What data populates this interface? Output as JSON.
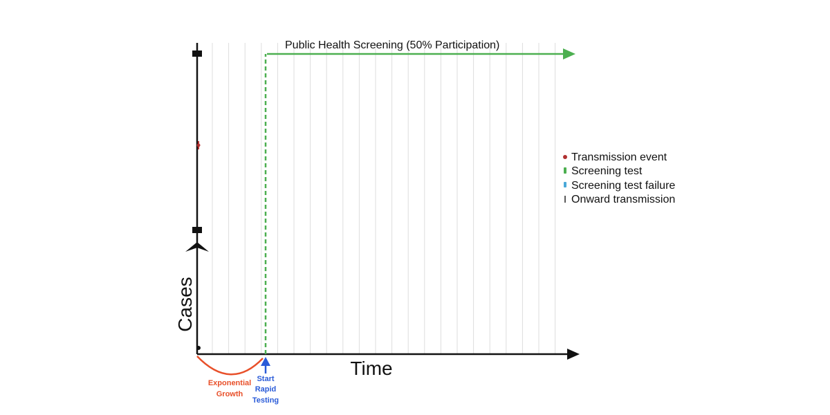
{
  "title": "Public Health Screening (50% Participation)",
  "axes": {
    "x_label": "Time",
    "y_label": "Cases"
  },
  "annotations": {
    "growth_line1": "Exponential",
    "growth_line2": "Growth",
    "start_line1": "Start",
    "start_line2": "Rapid",
    "start_line3": "Testing"
  },
  "legend": [
    {
      "label": "Transmission event",
      "marker": "dot",
      "color": "#b03030"
    },
    {
      "label": "Screening test",
      "marker": "bar",
      "color": "#4caf50"
    },
    {
      "label": "Screening test failure",
      "marker": "bar",
      "color": "#4aa8d8"
    },
    {
      "label": "Onward transmission",
      "marker": "line",
      "color": "#222222"
    }
  ],
  "colors": {
    "axis": "#111111",
    "screening_arrow": "#4caf50",
    "growth_curve": "#e8502a",
    "start_arrow": "#2a5bd8",
    "grid": "#dddddd"
  }
}
